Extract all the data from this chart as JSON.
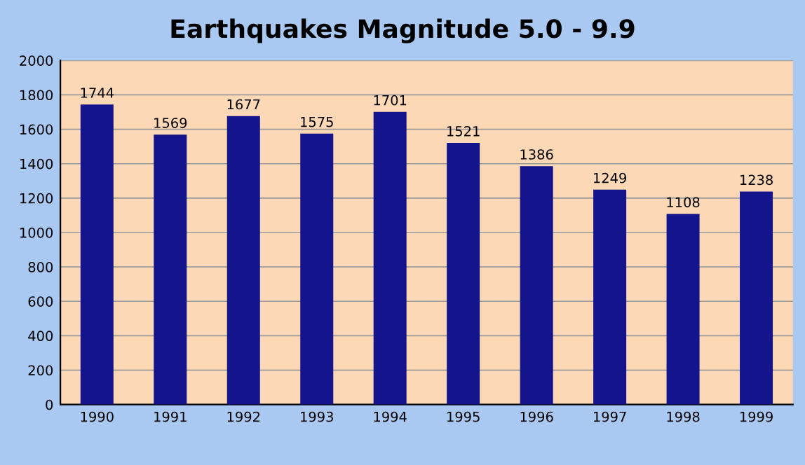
{
  "chart_data": {
    "type": "bar",
    "title": "Earthquakes Magnitude 5.0 - 9.9",
    "categories": [
      "1990",
      "1991",
      "1992",
      "1993",
      "1994",
      "1995",
      "1996",
      "1997",
      "1998",
      "1999"
    ],
    "values": [
      1744,
      1569,
      1677,
      1575,
      1701,
      1521,
      1386,
      1249,
      1108,
      1238
    ],
    "color": "#14148c",
    "ylim": [
      0,
      2000
    ],
    "yticks": [
      0,
      200,
      400,
      600,
      800,
      1000,
      1200,
      1400,
      1600,
      1800,
      2000
    ],
    "grid": "y",
    "data_labels": true,
    "legend": false
  }
}
